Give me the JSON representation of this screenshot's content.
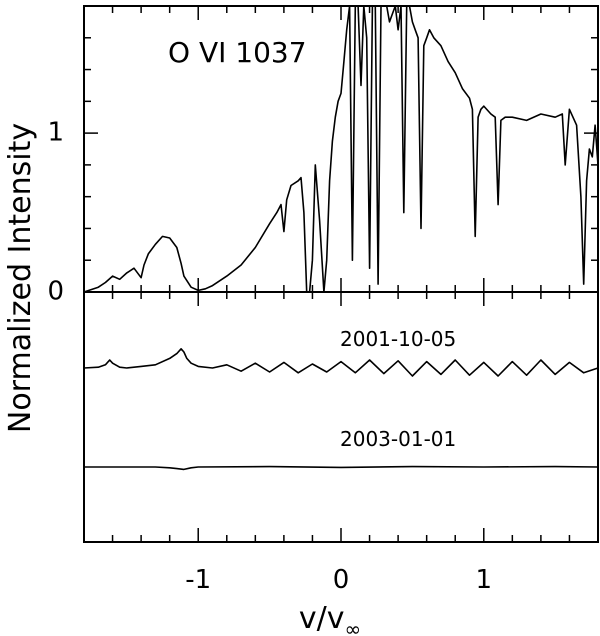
{
  "chart_data": [
    {
      "type": "line",
      "panel": "top",
      "xlabel": "v/v",
      "xlabel_subscript": "∞",
      "ylabel": "Normalized Intensity",
      "annotation": "O VI 1037",
      "xlim": [
        -1.8,
        1.8
      ],
      "ylim": [
        0,
        1.8
      ],
      "x_major_ticks": [
        -1,
        0,
        1
      ],
      "x_minor_step": 0.2,
      "y_major_ticks": [
        0,
        1
      ],
      "y_tick_labels": [
        "0",
        "1"
      ],
      "y_minor_step": 0.2,
      "series": [
        {
          "x": [
            -1.8,
            -1.7,
            -1.65,
            -1.6,
            -1.55,
            -1.5,
            -1.45,
            -1.4,
            -1.38,
            -1.35,
            -1.3,
            -1.25,
            -1.2,
            -1.15,
            -1.12,
            -1.1,
            -1.05,
            -1.0,
            -0.95,
            -0.9,
            -0.8,
            -0.7,
            -0.6,
            -0.5,
            -0.45,
            -0.42,
            -0.4,
            -0.38,
            -0.35,
            -0.3,
            -0.28,
            -0.26,
            -0.24,
            -0.22,
            -0.2,
            -0.18,
            -0.15,
            -0.12,
            -0.1,
            -0.08,
            -0.06,
            -0.04,
            -0.02,
            0.0,
            0.02,
            0.04,
            0.06,
            0.08,
            0.1,
            0.12,
            0.14,
            0.16,
            0.18,
            0.2,
            0.22,
            0.24,
            0.26,
            0.28,
            0.3,
            0.32,
            0.34,
            0.36,
            0.38,
            0.4,
            0.42,
            0.44,
            0.46,
            0.48,
            0.5,
            0.52,
            0.54,
            0.56,
            0.58,
            0.6,
            0.62,
            0.65,
            0.7,
            0.75,
            0.8,
            0.85,
            0.9,
            0.92,
            0.94,
            0.96,
            0.98,
            1.0,
            1.05,
            1.08,
            1.1,
            1.12,
            1.15,
            1.2,
            1.3,
            1.4,
            1.5,
            1.55,
            1.57,
            1.6,
            1.65,
            1.68,
            1.7,
            1.72,
            1.74,
            1.76,
            1.78,
            1.8
          ],
          "y": [
            0.0,
            0.03,
            0.06,
            0.1,
            0.08,
            0.12,
            0.15,
            0.09,
            0.17,
            0.24,
            0.3,
            0.35,
            0.34,
            0.28,
            0.18,
            0.1,
            0.03,
            0.01,
            0.02,
            0.04,
            0.1,
            0.17,
            0.28,
            0.43,
            0.5,
            0.55,
            0.38,
            0.58,
            0.67,
            0.7,
            0.72,
            0.5,
            0.0,
            0.0,
            0.2,
            0.8,
            0.45,
            0.0,
            0.2,
            0.7,
            0.95,
            1.1,
            1.2,
            1.25,
            1.45,
            1.65,
            1.8,
            0.2,
            1.8,
            1.8,
            1.3,
            1.8,
            1.6,
            0.15,
            1.8,
            1.8,
            0.05,
            1.8,
            1.8,
            1.8,
            1.7,
            1.75,
            1.8,
            1.65,
            1.8,
            0.5,
            1.8,
            1.8,
            1.7,
            1.65,
            1.6,
            0.4,
            1.55,
            1.6,
            1.65,
            1.6,
            1.55,
            1.45,
            1.38,
            1.28,
            1.22,
            1.15,
            0.35,
            1.1,
            1.15,
            1.17,
            1.12,
            1.1,
            0.55,
            1.08,
            1.1,
            1.1,
            1.08,
            1.12,
            1.1,
            1.12,
            0.8,
            1.15,
            1.05,
            0.6,
            0.05,
            0.7,
            0.9,
            0.85,
            1.05,
            0.8
          ]
        }
      ]
    },
    {
      "type": "line",
      "panel": "bottom",
      "xlim": [
        -1.8,
        1.8
      ],
      "series": [
        {
          "name": "2001-10-05",
          "x": [
            -1.8,
            -1.7,
            -1.65,
            -1.62,
            -1.6,
            -1.55,
            -1.5,
            -1.4,
            -1.3,
            -1.2,
            -1.15,
            -1.12,
            -1.1,
            -1.08,
            -1.05,
            -1.0,
            -0.9,
            -0.8,
            -0.7,
            -0.6,
            -0.5,
            -0.4,
            -0.3,
            -0.2,
            -0.1,
            0.0,
            0.1,
            0.2,
            0.3,
            0.4,
            0.5,
            0.6,
            0.7,
            0.8,
            0.9,
            1.0,
            1.1,
            1.2,
            1.3,
            1.4,
            1.5,
            1.6,
            1.7,
            1.8
          ],
          "y": [
            0.0,
            0.01,
            0.04,
            0.1,
            0.06,
            0.01,
            0.0,
            0.02,
            0.04,
            0.12,
            0.18,
            0.24,
            0.2,
            0.12,
            0.06,
            0.02,
            0.0,
            0.04,
            -0.04,
            0.06,
            -0.05,
            0.07,
            -0.06,
            0.05,
            -0.05,
            0.08,
            -0.06,
            0.1,
            -0.07,
            0.09,
            -0.1,
            0.08,
            -0.08,
            0.1,
            -0.09,
            0.07,
            -0.1,
            0.08,
            -0.09,
            0.1,
            -0.08,
            0.07,
            -0.06,
            0.0
          ]
        },
        {
          "name": "2003-01-01",
          "x": [
            -1.8,
            -1.3,
            -1.2,
            -1.15,
            -1.1,
            -1.05,
            -1.0,
            -0.5,
            0.0,
            0.5,
            1.0,
            1.5,
            1.8
          ],
          "y": [
            0.0,
            0.0,
            -0.01,
            -0.02,
            -0.03,
            -0.01,
            0.0,
            0.005,
            -0.005,
            0.005,
            0.0,
            0.005,
            0.0
          ]
        }
      ]
    }
  ]
}
